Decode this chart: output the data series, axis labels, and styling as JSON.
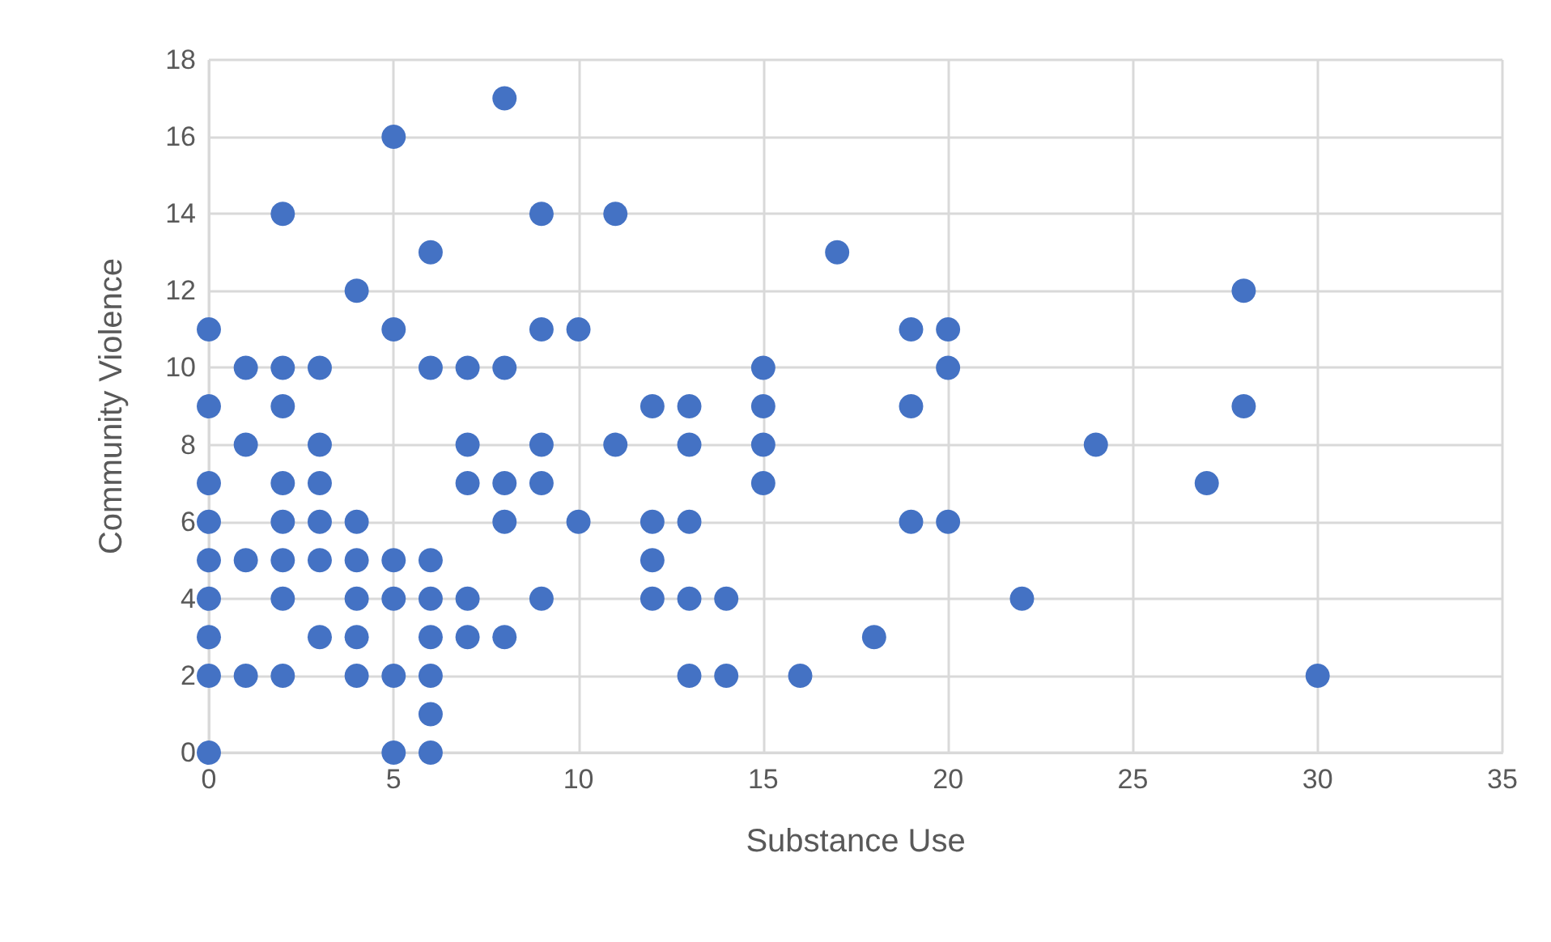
{
  "chart_data": {
    "type": "scatter",
    "xlabel": "Substance Use",
    "ylabel": "Community Violence",
    "xlim": [
      0,
      35
    ],
    "xticks": [
      0,
      5,
      10,
      15,
      20,
      25,
      30,
      35
    ],
    "ylim": [
      0,
      18
    ],
    "yticks": [
      0,
      2,
      4,
      6,
      8,
      10,
      12,
      14,
      16,
      18
    ],
    "grid": true,
    "marker": "circle",
    "series": [
      {
        "color": "#4472c4",
        "x": [
          0,
          0,
          0,
          0,
          0,
          0,
          0,
          0,
          0,
          1,
          1,
          1,
          1,
          2,
          2,
          2,
          2,
          2,
          2,
          2,
          2,
          3,
          3,
          3,
          3,
          3,
          3,
          4,
          4,
          4,
          4,
          4,
          4,
          5,
          5,
          5,
          5,
          5,
          5,
          6,
          6,
          6,
          6,
          6,
          6,
          6,
          6,
          7,
          7,
          7,
          7,
          7,
          8,
          8,
          8,
          8,
          8,
          9,
          9,
          9,
          9,
          9,
          10,
          10,
          11,
          11,
          12,
          12,
          12,
          12,
          13,
          13,
          13,
          13,
          13,
          14,
          14,
          15,
          15,
          15,
          15,
          16,
          17,
          18,
          19,
          19,
          19,
          20,
          20,
          20,
          22,
          24,
          27,
          28,
          28,
          30
        ],
        "values": [
          11,
          9,
          7,
          6,
          5,
          4,
          3,
          2,
          0,
          10,
          8,
          5,
          2,
          14,
          10,
          9,
          7,
          6,
          5,
          4,
          2,
          10,
          8,
          7,
          6,
          5,
          3,
          12,
          6,
          5,
          4,
          3,
          2,
          16,
          11,
          5,
          4,
          2,
          0,
          13,
          10,
          5,
          4,
          3,
          2,
          1,
          0,
          10,
          8,
          7,
          4,
          3,
          17,
          10,
          7,
          6,
          3,
          14,
          11,
          8,
          7,
          4,
          11,
          6,
          14,
          8,
          9,
          6,
          5,
          4,
          9,
          8,
          6,
          4,
          2,
          4,
          2,
          10,
          9,
          8,
          7,
          2,
          13,
          3,
          11,
          9,
          6,
          11,
          10,
          6,
          4,
          8,
          7,
          12,
          9,
          2
        ]
      }
    ]
  }
}
